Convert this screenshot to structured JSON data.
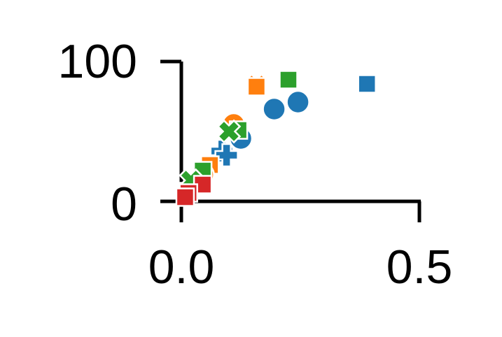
{
  "chart_data": {
    "type": "scatter",
    "title": "",
    "xlabel": "",
    "ylabel": "",
    "xlim": [
      0,
      0.5
    ],
    "ylim": [
      0,
      100
    ],
    "x_ticks": [
      "0.0",
      "0.5"
    ],
    "y_ticks": [
      "0",
      "100"
    ],
    "grid": false,
    "legend": "none",
    "series": [
      {
        "color": "#1f77b4",
        "points": [
          {
            "x": 0.125,
            "y": 45,
            "marker": "circle"
          },
          {
            "x": 0.195,
            "y": 66,
            "marker": "circle"
          },
          {
            "x": 0.245,
            "y": 71,
            "marker": "circle"
          },
          {
            "x": 0.39,
            "y": 84,
            "marker": "square"
          },
          {
            "x": 0.085,
            "y": 36,
            "marker": "plus"
          },
          {
            "x": 0.095,
            "y": 33,
            "marker": "plus"
          }
        ]
      },
      {
        "color": "#ff7f0e",
        "points": [
          {
            "x": 0.158,
            "y": 83,
            "marker": "x"
          },
          {
            "x": 0.158,
            "y": 82,
            "marker": "square"
          },
          {
            "x": 0.11,
            "y": 55,
            "marker": "circle"
          },
          {
            "x": 0.06,
            "y": 26,
            "marker": "square"
          },
          {
            "x": 0.045,
            "y": 19,
            "marker": "circle"
          },
          {
            "x": 0.015,
            "y": 7,
            "marker": "square"
          }
        ]
      },
      {
        "color": "#2ca02c",
        "points": [
          {
            "x": 0.225,
            "y": 87,
            "marker": "square"
          },
          {
            "x": 0.12,
            "y": 51,
            "marker": "square"
          },
          {
            "x": 0.1,
            "y": 50,
            "marker": "x"
          },
          {
            "x": 0.045,
            "y": 22,
            "marker": "square"
          },
          {
            "x": 0.02,
            "y": 15,
            "marker": "x"
          }
        ]
      },
      {
        "color": "#d62728",
        "points": [
          {
            "x": 0.045,
            "y": 12,
            "marker": "square"
          },
          {
            "x": 0.015,
            "y": 6,
            "marker": "square"
          },
          {
            "x": 0.008,
            "y": 3,
            "marker": "square"
          }
        ]
      }
    ]
  }
}
